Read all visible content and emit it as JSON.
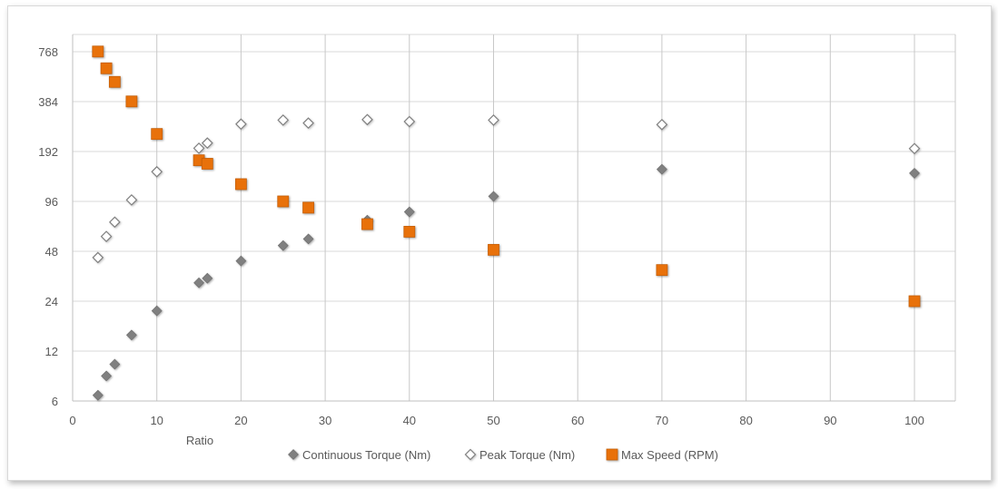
{
  "chart_data": {
    "type": "scatter",
    "title": "",
    "xlabel": "Ratio",
    "ylabel": "",
    "xlim": [
      0,
      105
    ],
    "xticks": [
      0,
      10,
      20,
      30,
      40,
      50,
      60,
      70,
      80,
      90,
      100
    ],
    "ylim": [
      6,
      1000
    ],
    "yscale": "log2",
    "yticks": [
      6,
      12,
      24,
      48,
      96,
      192,
      384,
      768
    ],
    "grid": true,
    "legend": "bottom",
    "series": [
      {
        "name": "Continuous Torque (Nm)",
        "marker": "diamond-filled",
        "color": "#808080",
        "points": [
          [
            3,
            6.5
          ],
          [
            4,
            8.5
          ],
          [
            5,
            10
          ],
          [
            7,
            15
          ],
          [
            10,
            21
          ],
          [
            15,
            31
          ],
          [
            16,
            33
          ],
          [
            20,
            42
          ],
          [
            25,
            52
          ],
          [
            28,
            57
          ],
          [
            35,
            74
          ],
          [
            40,
            83
          ],
          [
            50,
            103
          ],
          [
            70,
            150
          ],
          [
            100,
            142
          ]
        ]
      },
      {
        "name": "Peak Torque (Nm)",
        "marker": "diamond-open",
        "color": "#7f7f7f",
        "points": [
          [
            3,
            44
          ],
          [
            4,
            59
          ],
          [
            5,
            72
          ],
          [
            7,
            98
          ],
          [
            10,
            145
          ],
          [
            15,
            201
          ],
          [
            16,
            216
          ],
          [
            20,
            281
          ],
          [
            25,
            297
          ],
          [
            28,
            285
          ],
          [
            35,
            299
          ],
          [
            40,
            291
          ],
          [
            50,
            297
          ],
          [
            70,
            279
          ],
          [
            100,
            200
          ]
        ]
      },
      {
        "name": "Max Speed (RPM)",
        "marker": "square",
        "color": "#e8710a",
        "points": [
          [
            3,
            770
          ],
          [
            4,
            610
          ],
          [
            5,
            505
          ],
          [
            7,
            385
          ],
          [
            10,
            245
          ],
          [
            15,
            170
          ],
          [
            16,
            162
          ],
          [
            20,
            122
          ],
          [
            25,
            96
          ],
          [
            28,
            88
          ],
          [
            35,
            70
          ],
          [
            40,
            63
          ],
          [
            50,
            49
          ],
          [
            70,
            37
          ],
          [
            100,
            24
          ]
        ]
      }
    ]
  }
}
